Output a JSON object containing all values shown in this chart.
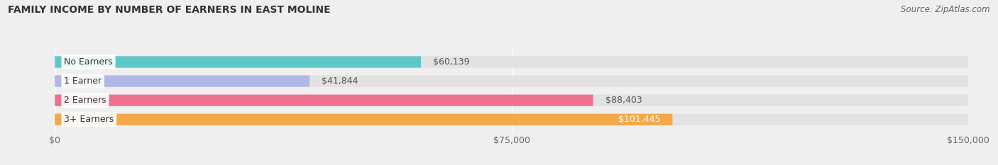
{
  "title": "FAMILY INCOME BY NUMBER OF EARNERS IN EAST MOLINE",
  "source": "Source: ZipAtlas.com",
  "categories": [
    "No Earners",
    "1 Earner",
    "2 Earners",
    "3+ Earners"
  ],
  "values": [
    60139,
    41844,
    88403,
    101445
  ],
  "bar_colors": [
    "#5ec8c8",
    "#b0b8e8",
    "#f07090",
    "#f5a84a"
  ],
  "label_colors": [
    "#000000",
    "#000000",
    "#000000",
    "#ffffff"
  ],
  "xlim": [
    0,
    150000
  ],
  "xticks": [
    0,
    75000,
    150000
  ],
  "xtick_labels": [
    "$0",
    "$75,000",
    "$150,000"
  ],
  "background_color": "#efefef",
  "bar_bg_color": "#e2e2e2",
  "figsize": [
    14.06,
    2.33
  ],
  "dpi": 100
}
